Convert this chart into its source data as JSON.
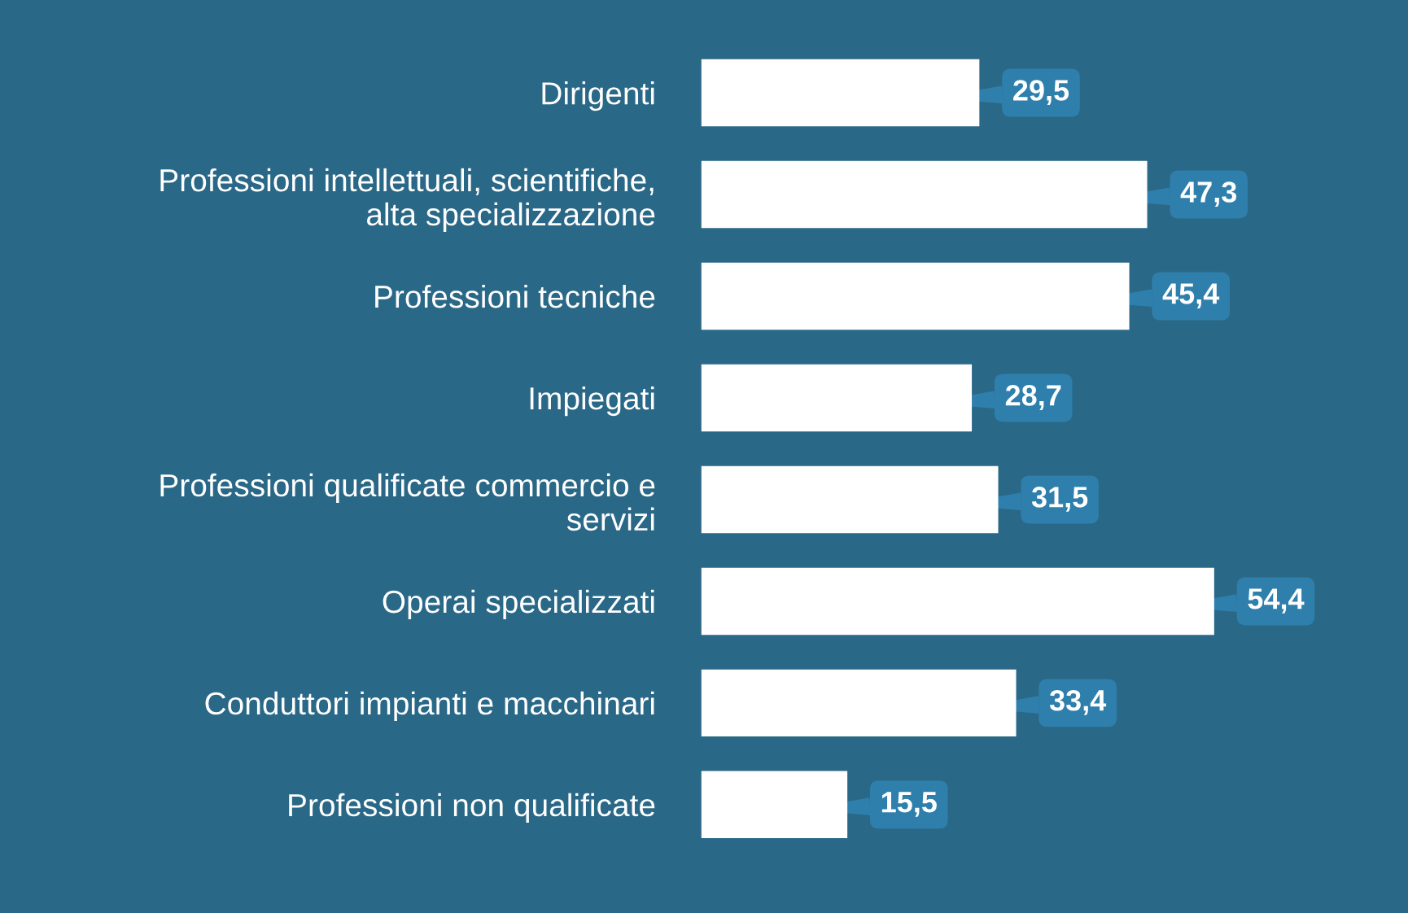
{
  "chart_data": {
    "type": "bar",
    "orientation": "horizontal",
    "categories": [
      "Dirigenti",
      "Professioni intellettuali, scientifiche,\nalta specializzazione",
      "Professioni tecniche",
      "Impiegati",
      "Professioni qualificate commercio e\nservizi",
      "Operai specializzati",
      "Conduttori impianti e macchinari",
      "Professioni non qualificate"
    ],
    "values": [
      29.5,
      47.3,
      45.4,
      28.7,
      31.5,
      54.4,
      33.4,
      15.5
    ],
    "value_labels": [
      "29,5",
      "47,3",
      "45,4",
      "28,7",
      "31,5",
      "54,4",
      "33,4",
      "15,5"
    ],
    "color": "#ffffff",
    "grid": false,
    "legend": false
  }
}
